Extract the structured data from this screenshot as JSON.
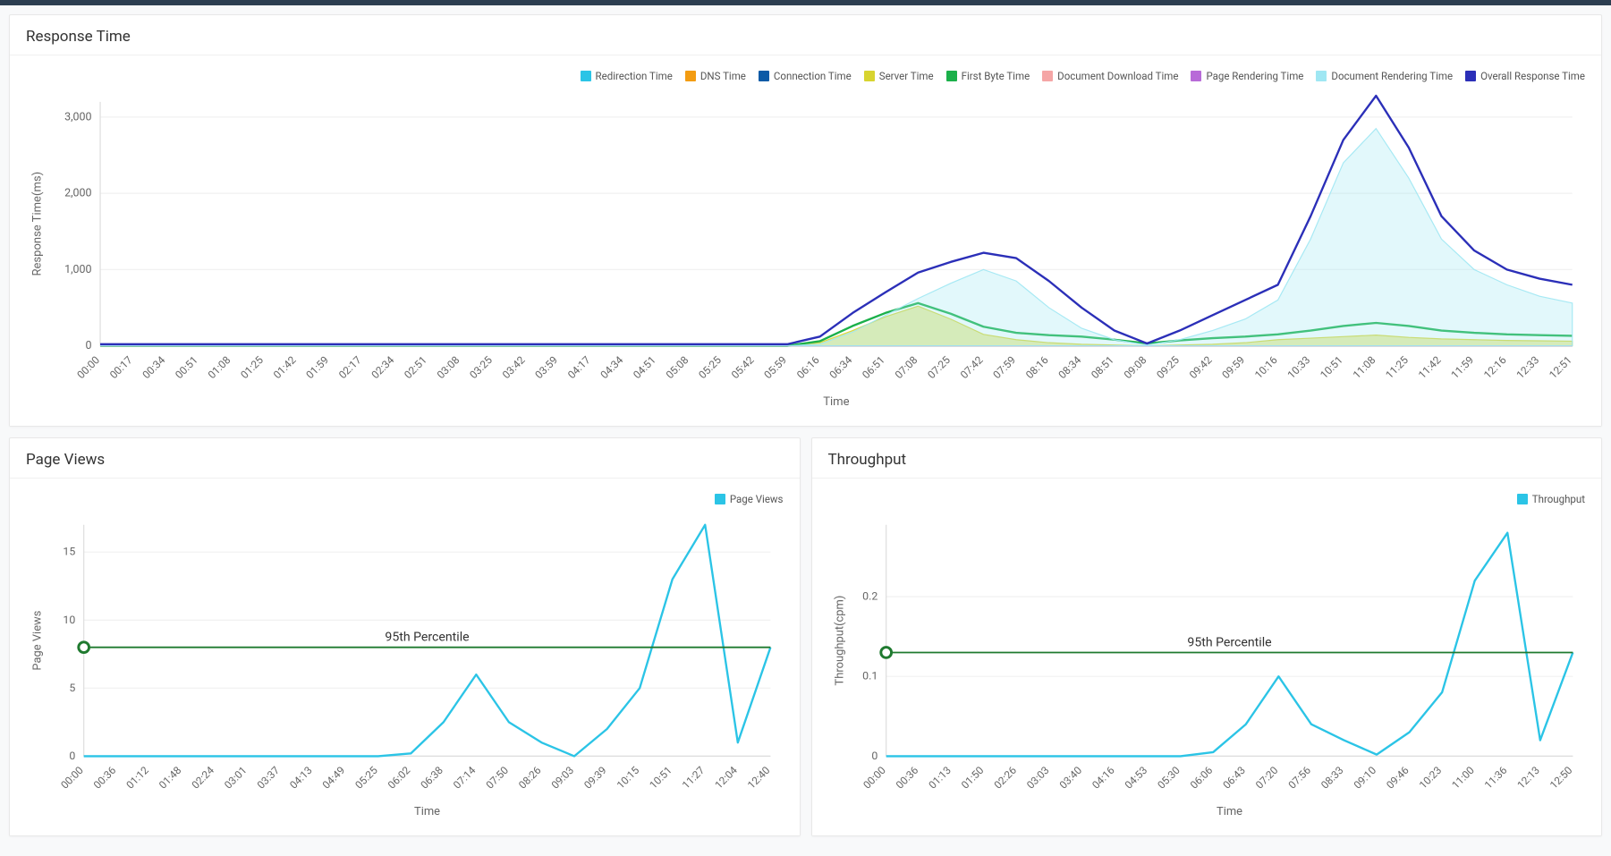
{
  "response_time_chart": {
    "title": "Response Time",
    "type": "line-area",
    "xlabel": "Time",
    "ylabel": "Response Time(ms)",
    "ylim": [
      0,
      3200
    ],
    "yticks": [
      0,
      1000,
      2000,
      3000
    ],
    "background_color": "#ffffff",
    "grid_color": "#f0f0f0",
    "axis_color": "#dddddd",
    "label_fontsize": 11,
    "tick_fontsize": 10.5,
    "categories": [
      "00:00",
      "00:17",
      "00:34",
      "00:51",
      "01:08",
      "01:25",
      "01:42",
      "01:59",
      "02:17",
      "02:34",
      "02:51",
      "03:08",
      "03:25",
      "03:42",
      "03:59",
      "04:17",
      "04:34",
      "04:51",
      "05:08",
      "05:25",
      "05:42",
      "05:59",
      "06:16",
      "06:34",
      "06:51",
      "07:08",
      "07:25",
      "07:42",
      "07:59",
      "08:16",
      "08:34",
      "08:51",
      "09:08",
      "09:25",
      "09:42",
      "09:59",
      "10:16",
      "10:33",
      "10:51",
      "11:08",
      "11:25",
      "11:42",
      "11:59",
      "12:16",
      "12:33",
      "12:51"
    ],
    "legend_position": "top-right",
    "series": [
      {
        "name": "Redirection Time",
        "color": "#2bc4e6",
        "fill_opacity": 0.18,
        "style": "area",
        "values": [
          0,
          0,
          0,
          0,
          0,
          0,
          0,
          0,
          0,
          0,
          0,
          0,
          0,
          0,
          0,
          0,
          0,
          0,
          0,
          0,
          0,
          0,
          0,
          0,
          0,
          0,
          0,
          0,
          0,
          0,
          0,
          0,
          0,
          0,
          0,
          0,
          0,
          0,
          0,
          0,
          0,
          0,
          0,
          0,
          0,
          0
        ]
      },
      {
        "name": "DNS Time",
        "color": "#f39c12",
        "fill_opacity": 0.18,
        "style": "area",
        "values": [
          0,
          0,
          0,
          0,
          0,
          0,
          0,
          0,
          0,
          0,
          0,
          0,
          0,
          0,
          0,
          0,
          0,
          0,
          0,
          0,
          0,
          0,
          0,
          0,
          0,
          0,
          0,
          0,
          0,
          0,
          0,
          0,
          0,
          0,
          0,
          0,
          0,
          0,
          0,
          0,
          0,
          0,
          0,
          0,
          0,
          0
        ]
      },
      {
        "name": "Connection Time",
        "color": "#0b5aa6",
        "fill_opacity": 0.18,
        "style": "area",
        "values": [
          0,
          0,
          0,
          0,
          0,
          0,
          0,
          0,
          0,
          0,
          0,
          0,
          0,
          0,
          0,
          0,
          0,
          0,
          0,
          0,
          0,
          0,
          0,
          0,
          0,
          0,
          0,
          0,
          0,
          0,
          0,
          0,
          0,
          0,
          0,
          0,
          0,
          0,
          0,
          0,
          0,
          0,
          0,
          0,
          0,
          0
        ]
      },
      {
        "name": "Server Time",
        "color": "#d8d430",
        "fill_opacity": 0.45,
        "style": "area",
        "values": [
          0,
          0,
          0,
          0,
          0,
          0,
          0,
          0,
          0,
          0,
          0,
          0,
          0,
          0,
          0,
          0,
          0,
          0,
          0,
          0,
          0,
          0,
          40,
          200,
          380,
          520,
          350,
          150,
          80,
          40,
          20,
          10,
          0,
          10,
          20,
          40,
          80,
          100,
          120,
          140,
          110,
          90,
          80,
          70,
          65,
          60
        ]
      },
      {
        "name": "First Byte Time",
        "color": "#1bb04a",
        "fill_opacity": 0.0,
        "style": "line",
        "line_width": 2,
        "values": [
          0,
          0,
          0,
          0,
          0,
          0,
          0,
          0,
          0,
          0,
          0,
          0,
          0,
          0,
          0,
          0,
          0,
          0,
          0,
          0,
          0,
          0,
          60,
          260,
          430,
          560,
          420,
          250,
          170,
          140,
          120,
          80,
          30,
          70,
          100,
          120,
          150,
          200,
          260,
          300,
          260,
          200,
          170,
          150,
          140,
          130
        ]
      },
      {
        "name": "Document Download Time",
        "color": "#f5a6a6",
        "fill_opacity": 0.18,
        "style": "area",
        "values": [
          0,
          0,
          0,
          0,
          0,
          0,
          0,
          0,
          0,
          0,
          0,
          0,
          0,
          0,
          0,
          0,
          0,
          0,
          0,
          0,
          0,
          0,
          0,
          0,
          0,
          0,
          0,
          0,
          0,
          0,
          0,
          0,
          0,
          0,
          0,
          0,
          0,
          0,
          0,
          0,
          0,
          0,
          0,
          0,
          0,
          0
        ]
      },
      {
        "name": "Page Rendering Time",
        "color": "#b86bd8",
        "fill_opacity": 0.18,
        "style": "area",
        "values": [
          0,
          0,
          0,
          0,
          0,
          0,
          0,
          0,
          0,
          0,
          0,
          0,
          0,
          0,
          0,
          0,
          0,
          0,
          0,
          0,
          0,
          0,
          0,
          0,
          0,
          0,
          0,
          0,
          0,
          0,
          0,
          0,
          0,
          0,
          0,
          0,
          0,
          0,
          0,
          0,
          0,
          0,
          0,
          0,
          0,
          0
        ]
      },
      {
        "name": "Document Rendering Time",
        "color": "#9fe7f3",
        "fill_opacity": 0.3,
        "style": "area",
        "values": [
          0,
          0,
          0,
          0,
          0,
          0,
          0,
          0,
          0,
          0,
          0,
          0,
          0,
          0,
          0,
          0,
          0,
          0,
          0,
          0,
          0,
          0,
          20,
          180,
          400,
          620,
          820,
          1000,
          850,
          500,
          230,
          80,
          10,
          80,
          200,
          350,
          600,
          1400,
          2400,
          2850,
          2200,
          1400,
          1000,
          800,
          650,
          560
        ]
      },
      {
        "name": "Overall Response Time",
        "color": "#2b2fb8",
        "fill_opacity": 0.0,
        "style": "line",
        "line_width": 2,
        "values": [
          20,
          20,
          20,
          20,
          20,
          20,
          20,
          20,
          20,
          20,
          20,
          20,
          20,
          20,
          20,
          20,
          20,
          20,
          20,
          20,
          20,
          20,
          120,
          430,
          700,
          960,
          1100,
          1220,
          1150,
          850,
          500,
          200,
          30,
          200,
          400,
          600,
          800,
          1700,
          2700,
          3280,
          2600,
          1700,
          1250,
          1000,
          880,
          800
        ]
      }
    ]
  },
  "page_views_chart": {
    "title": "Page Views",
    "type": "line",
    "xlabel": "Time",
    "ylabel": "Page Views",
    "ylim": [
      0,
      17
    ],
    "yticks": [
      0,
      5,
      10,
      15
    ],
    "background_color": "#ffffff",
    "grid_color": "#f0f0f0",
    "axis_color": "#dddddd",
    "categories": [
      "00:00",
      "00:36",
      "01:12",
      "01:48",
      "02:24",
      "03:01",
      "03:37",
      "04:13",
      "04:49",
      "05:25",
      "06:02",
      "06:38",
      "07:14",
      "07:50",
      "08:26",
      "09:03",
      "09:39",
      "10:15",
      "10:51",
      "11:27",
      "12:04",
      "12:40"
    ],
    "legend_position": "top-right",
    "series": [
      {
        "name": "Page Views",
        "color": "#2bc4e6",
        "style": "line",
        "line_width": 2,
        "values": [
          0,
          0,
          0,
          0,
          0,
          0,
          0,
          0,
          0,
          0,
          0.2,
          2.5,
          6,
          2.5,
          1,
          0,
          2,
          5,
          13,
          17,
          1,
          8
        ]
      }
    ],
    "annotation": {
      "label": "95th Percentile",
      "value": 8,
      "color": "#1f7a2f",
      "marker_color": "#1f7a2f",
      "marker_fill": "#ffffff",
      "line_width": 1.5
    }
  },
  "throughput_chart": {
    "title": "Throughput",
    "type": "line",
    "xlabel": "Time",
    "ylabel": "Throughput(cpm)",
    "ylim": [
      0,
      0.29
    ],
    "yticks": [
      0,
      0.1,
      0.2
    ],
    "background_color": "#ffffff",
    "grid_color": "#f0f0f0",
    "axis_color": "#dddddd",
    "categories": [
      "00:00",
      "00:36",
      "01:13",
      "01:50",
      "02:26",
      "03:03",
      "03:40",
      "04:16",
      "04:53",
      "05:30",
      "06:06",
      "06:43",
      "07:20",
      "07:56",
      "08:33",
      "09:10",
      "09:46",
      "10:23",
      "11:00",
      "11:36",
      "12:13",
      "12:50"
    ],
    "legend_position": "top-right",
    "series": [
      {
        "name": "Throughput",
        "color": "#2bc4e6",
        "style": "line",
        "line_width": 2,
        "values": [
          0,
          0,
          0,
          0,
          0,
          0,
          0,
          0,
          0,
          0,
          0.005,
          0.04,
          0.1,
          0.04,
          0.02,
          0.002,
          0.03,
          0.08,
          0.22,
          0.28,
          0.02,
          0.13
        ]
      }
    ],
    "annotation": {
      "label": "95th Percentile",
      "value": 0.13,
      "color": "#1f7a2f",
      "marker_color": "#1f7a2f",
      "marker_fill": "#ffffff",
      "line_width": 1.5
    }
  }
}
